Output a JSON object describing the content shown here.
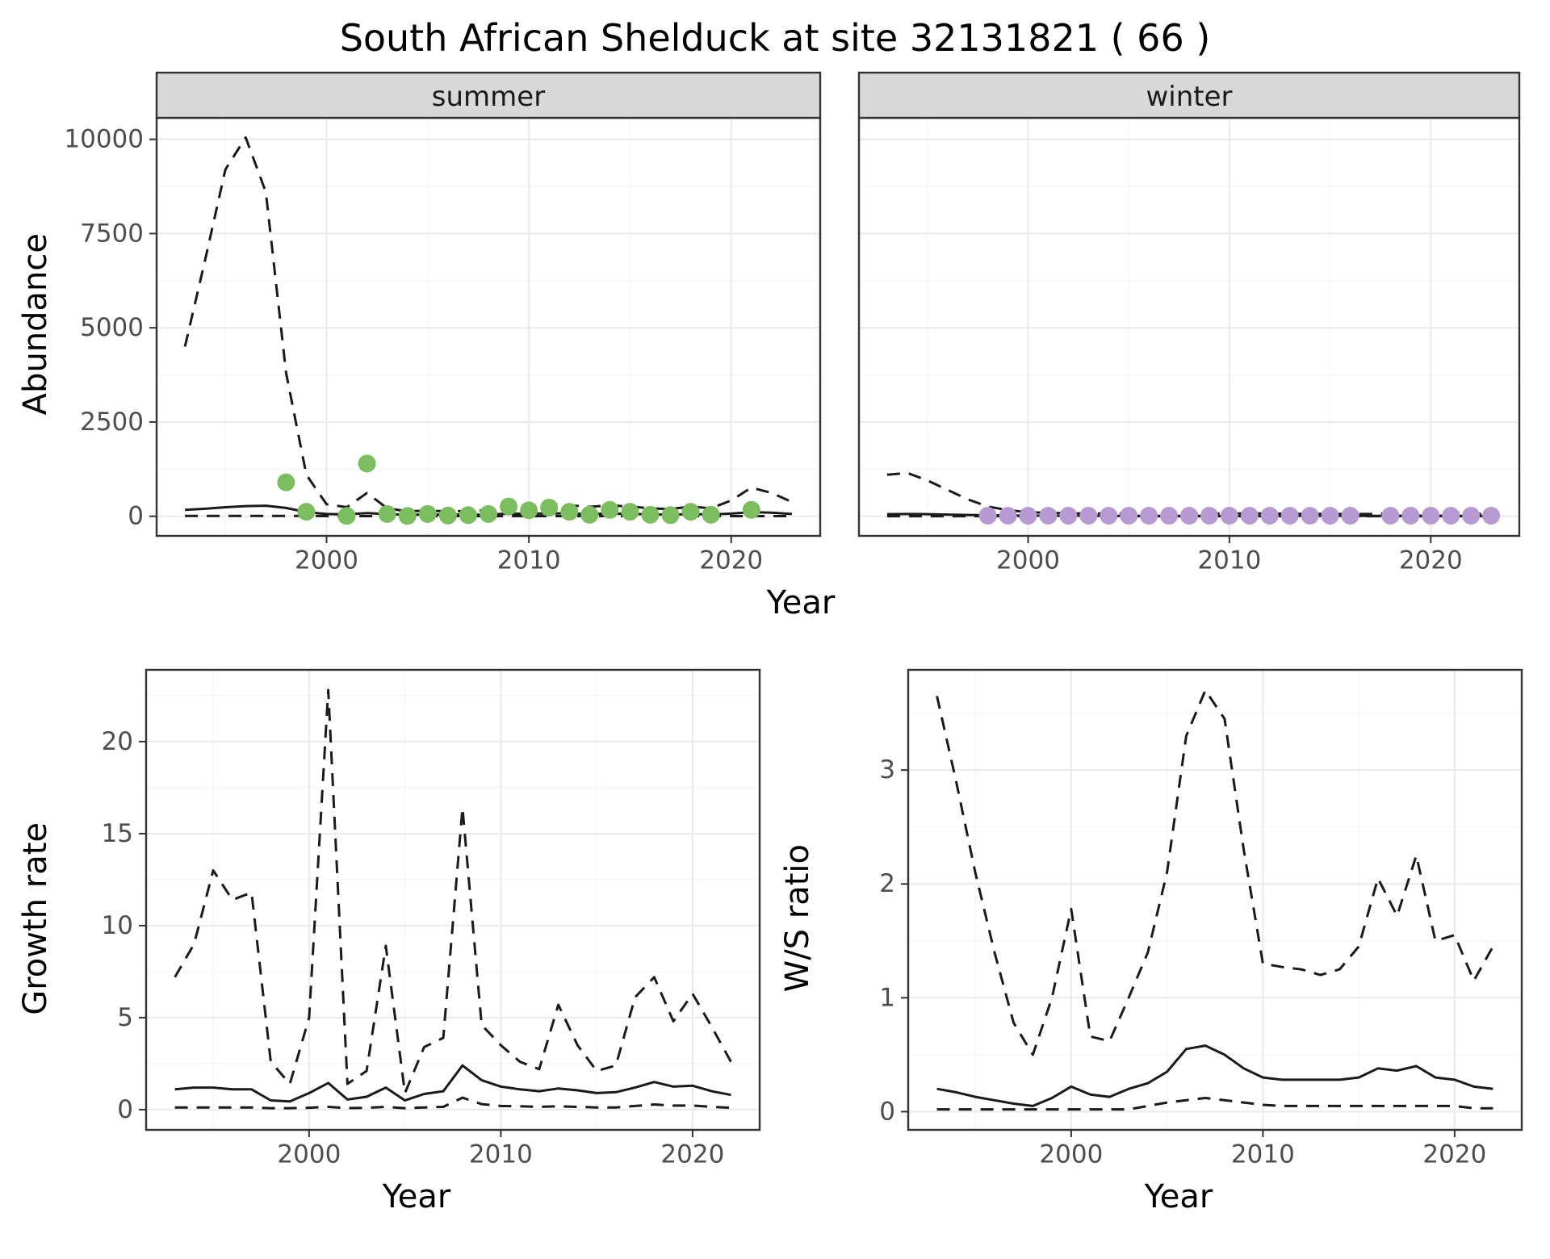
{
  "title": "South African Shelduck at site 32131821 ( 66 )",
  "colors": {
    "summer_dot": "#7cbd5f",
    "winter_dot": "#b79ad1",
    "strip_bg": "#d9d9d9",
    "panel_border": "#333333",
    "grid_major": "#ebebeb",
    "grid_minor": "#f6f6f6",
    "line": "#1a1a1a",
    "tick_label": "#4d4d4d"
  },
  "chart_data": [
    {
      "id": "abundance",
      "type": "line",
      "title": "",
      "xlabel": "Year",
      "ylabel": "Abundance",
      "xlim": [
        1991.6,
        2024.4
      ],
      "ylim": [
        -520,
        10570
      ],
      "xticks": [
        2000,
        2010,
        2020
      ],
      "yticks": [
        0,
        2500,
        5000,
        7500,
        10000
      ],
      "grid": true,
      "legend": "none",
      "x": [
        1993,
        1994,
        1995,
        1996,
        1997,
        1998,
        1999,
        2000,
        2001,
        2002,
        2003,
        2004,
        2005,
        2006,
        2007,
        2008,
        2009,
        2010,
        2011,
        2012,
        2013,
        2014,
        2015,
        2016,
        2017,
        2018,
        2019,
        2020,
        2021,
        2022,
        2023
      ],
      "panels": [
        {
          "label": "summer",
          "series": [
            {
              "name": "upper_ci",
              "style": "dashed",
              "values": [
                4500,
                6800,
                9200,
                10050,
                8600,
                3800,
                1100,
                320,
                240,
                620,
                210,
                130,
                150,
                130,
                140,
                160,
                300,
                280,
                340,
                290,
                250,
                290,
                260,
                210,
                190,
                260,
                210,
                420,
                760,
                620,
                380
              ]
            },
            {
              "name": "median",
              "style": "solid",
              "values": [
                170,
                200,
                240,
                270,
                280,
                220,
                110,
                60,
                50,
                85,
                55,
                40,
                40,
                40,
                40,
                45,
                70,
                65,
                80,
                70,
                60,
                70,
                65,
                50,
                45,
                55,
                50,
                70,
                110,
                95,
                60
              ]
            },
            {
              "name": "lower_ci",
              "style": "dashed",
              "values": [
                10,
                10,
                10,
                10,
                10,
                10,
                10,
                5,
                5,
                5,
                5,
                5,
                5,
                5,
                5,
                5,
                5,
                5,
                5,
                5,
                5,
                5,
                5,
                5,
                5,
                5,
                5,
                5,
                5,
                5,
                5
              ]
            }
          ],
          "points": {
            "name": "observed_counts",
            "color": "summer_dot",
            "x": [
              1998,
              1999,
              2001,
              2002,
              2003,
              2004,
              2005,
              2006,
              2007,
              2008,
              2009,
              2010,
              2011,
              2012,
              2013,
              2014,
              2015,
              2016,
              2017,
              2018,
              2019,
              2021
            ],
            "y": [
              900,
              120,
              10,
              1400,
              60,
              10,
              60,
              20,
              30,
              60,
              260,
              160,
              230,
              120,
              40,
              170,
              120,
              40,
              30,
              120,
              40,
              170
            ]
          }
        },
        {
          "label": "winter",
          "series": [
            {
              "name": "upper_ci",
              "style": "dashed",
              "values": [
                1100,
                1150,
                950,
                700,
                450,
                260,
                160,
                110,
                90,
                80,
                75,
                70,
                70,
                65,
                65,
                65,
                70,
                70,
                75,
                70,
                65,
                65,
                60,
                60,
                60,
                80,
                100,
                110,
                95,
                70,
                55
              ]
            },
            {
              "name": "median",
              "style": "solid",
              "values": [
                55,
                60,
                55,
                45,
                35,
                28,
                22,
                18,
                15,
                14,
                13,
                12,
                12,
                12,
                12,
                12,
                12,
                12,
                13,
                12,
                12,
                12,
                11,
                11,
                11,
                13,
                15,
                16,
                14,
                12,
                10
              ]
            },
            {
              "name": "lower_ci",
              "style": "dashed",
              "values": [
                2,
                2,
                2,
                2,
                2,
                2,
                2,
                2,
                2,
                2,
                2,
                2,
                2,
                2,
                2,
                2,
                2,
                2,
                2,
                2,
                2,
                2,
                2,
                2,
                2,
                2,
                2,
                2,
                2,
                2,
                2
              ]
            }
          ],
          "points": {
            "name": "observed_counts",
            "color": "winter_dot",
            "x": [
              1998,
              1999,
              2000,
              2001,
              2002,
              2003,
              2004,
              2005,
              2006,
              2007,
              2008,
              2009,
              2010,
              2011,
              2012,
              2013,
              2014,
              2015,
              2016,
              2018,
              2019,
              2020,
              2021,
              2022,
              2023
            ],
            "y": [
              15,
              15,
              15,
              15,
              15,
              15,
              15,
              15,
              15,
              15,
              15,
              15,
              15,
              15,
              15,
              15,
              15,
              15,
              15,
              15,
              15,
              15,
              15,
              15,
              15
            ]
          }
        }
      ]
    },
    {
      "id": "growth_rate",
      "type": "line",
      "title": "",
      "xlabel": "Year",
      "ylabel": "Growth rate",
      "xlim": [
        1991.5,
        2023.5
      ],
      "ylim": [
        -1.1,
        23.9
      ],
      "xticks": [
        2000,
        2010,
        2020
      ],
      "yticks": [
        0,
        5,
        10,
        15,
        20
      ],
      "grid": true,
      "legend": "none",
      "x": [
        1993,
        1994,
        1995,
        1996,
        1997,
        1998,
        1999,
        2000,
        2001,
        2002,
        2003,
        2004,
        2005,
        2006,
        2007,
        2008,
        2009,
        2010,
        2011,
        2012,
        2013,
        2014,
        2015,
        2016,
        2017,
        2018,
        2019,
        2020,
        2021,
        2022
      ],
      "panels": [
        {
          "label": null,
          "series": [
            {
              "name": "upper_ci",
              "style": "dashed",
              "values": [
                7.2,
                9.0,
                13.0,
                11.4,
                11.8,
                2.6,
                1.4,
                5.0,
                22.8,
                1.4,
                2.1,
                8.9,
                0.9,
                3.4,
                3.9,
                16.4,
                4.6,
                3.5,
                2.6,
                2.2,
                5.7,
                3.5,
                2.1,
                2.4,
                6.1,
                7.2,
                4.8,
                6.3,
                4.5,
                2.6
              ]
            },
            {
              "name": "median",
              "style": "solid",
              "values": [
                1.1,
                1.2,
                1.2,
                1.1,
                1.1,
                0.5,
                0.45,
                0.9,
                1.45,
                0.55,
                0.7,
                1.2,
                0.5,
                0.85,
                1.0,
                2.4,
                1.6,
                1.25,
                1.1,
                1.0,
                1.15,
                1.05,
                0.9,
                0.95,
                1.2,
                1.5,
                1.25,
                1.3,
                1.0,
                0.8
              ]
            },
            {
              "name": "lower_ci",
              "style": "dashed",
              "values": [
                0.12,
                0.12,
                0.12,
                0.12,
                0.12,
                0.08,
                0.08,
                0.1,
                0.15,
                0.08,
                0.1,
                0.15,
                0.08,
                0.12,
                0.15,
                0.65,
                0.3,
                0.2,
                0.18,
                0.15,
                0.18,
                0.15,
                0.12,
                0.12,
                0.2,
                0.28,
                0.22,
                0.22,
                0.15,
                0.1
              ]
            }
          ]
        }
      ]
    },
    {
      "id": "ws_ratio",
      "type": "line",
      "title": "",
      "xlabel": "Year",
      "ylabel": "W/S ratio",
      "xlim": [
        1991.5,
        2023.5
      ],
      "ylim": [
        -0.16,
        3.88
      ],
      "xticks": [
        2000,
        2010,
        2020
      ],
      "yticks": [
        0,
        1,
        2,
        3
      ],
      "grid": true,
      "legend": "none",
      "x": [
        1993,
        1994,
        1995,
        1996,
        1997,
        1998,
        1999,
        2000,
        2001,
        2002,
        2003,
        2004,
        2005,
        2006,
        2007,
        2008,
        2009,
        2010,
        2011,
        2012,
        2013,
        2014,
        2015,
        2016,
        2017,
        2018,
        2019,
        2020,
        2021,
        2022
      ],
      "panels": [
        {
          "label": null,
          "series": [
            {
              "name": "upper_ci",
              "style": "dashed",
              "values": [
                3.65,
                2.9,
                2.1,
                1.4,
                0.78,
                0.5,
                1.0,
                1.78,
                0.66,
                0.62,
                1.0,
                1.4,
                2.1,
                3.3,
                3.7,
                3.45,
                2.3,
                1.3,
                1.27,
                1.25,
                1.2,
                1.25,
                1.45,
                2.05,
                1.72,
                2.25,
                1.5,
                1.55,
                1.15,
                1.45
              ]
            },
            {
              "name": "median",
              "style": "solid",
              "values": [
                0.2,
                0.17,
                0.13,
                0.1,
                0.07,
                0.05,
                0.12,
                0.22,
                0.15,
                0.13,
                0.2,
                0.25,
                0.35,
                0.55,
                0.58,
                0.5,
                0.38,
                0.3,
                0.28,
                0.28,
                0.28,
                0.28,
                0.3,
                0.38,
                0.36,
                0.4,
                0.3,
                0.28,
                0.22,
                0.2
              ]
            },
            {
              "name": "lower_ci",
              "style": "dashed",
              "values": [
                0.02,
                0.02,
                0.02,
                0.02,
                0.02,
                0.02,
                0.02,
                0.02,
                0.02,
                0.02,
                0.02,
                0.05,
                0.08,
                0.1,
                0.12,
                0.1,
                0.08,
                0.06,
                0.05,
                0.05,
                0.05,
                0.05,
                0.05,
                0.05,
                0.05,
                0.05,
                0.05,
                0.05,
                0.03,
                0.03
              ]
            }
          ]
        }
      ]
    }
  ]
}
